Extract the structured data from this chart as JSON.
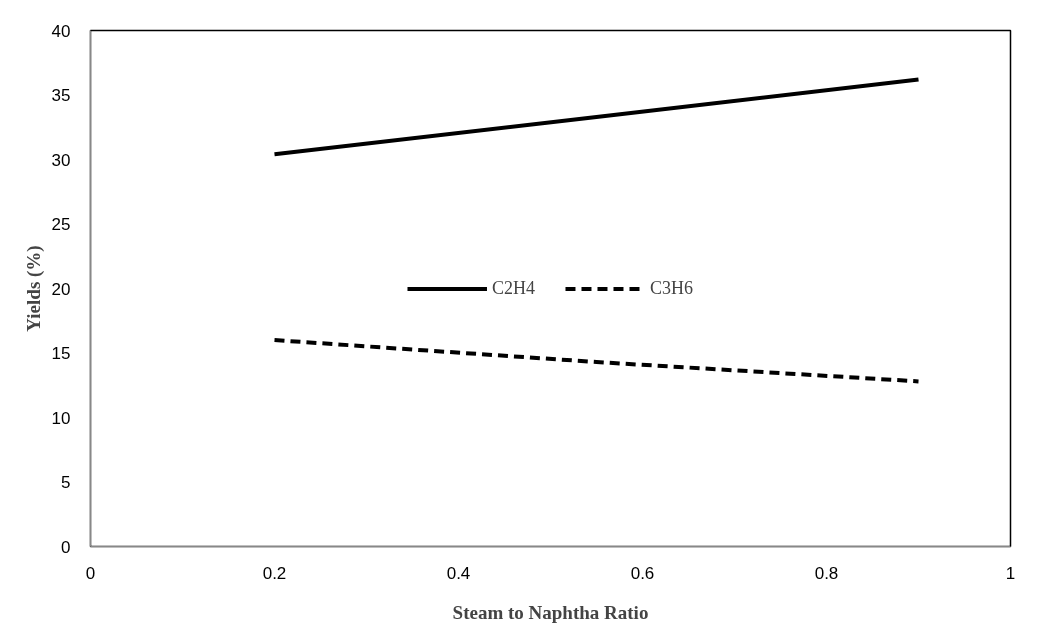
{
  "chart_data": {
    "type": "line",
    "xlabel": "Steam to Naphtha Ratio",
    "ylabel": "Yields (%)",
    "x": [
      0.2,
      0.55,
      0.9
    ],
    "series": [
      {
        "name": "C2H4",
        "color": "#000000",
        "values": [
          30.4,
          33.3,
          36.2
        ],
        "line_style": "solid"
      },
      {
        "name": "C3H6",
        "color": "#000000",
        "values": [
          16.0,
          14.3,
          12.8
        ],
        "line_style": "dashed"
      }
    ],
    "xlim": [
      0,
      1
    ],
    "xticks": [
      0,
      0.2,
      0.4,
      0.6,
      0.8,
      1
    ],
    "ylim": [
      0,
      40
    ],
    "yticks": [
      0,
      5,
      10,
      15,
      20,
      25,
      30,
      35,
      40
    ],
    "grid": false,
    "legend": "center",
    "marker": "none"
  }
}
